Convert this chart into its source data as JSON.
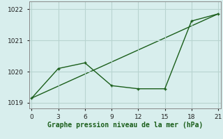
{
  "xlabel": "Graphe pression niveau de la mer (hPa)",
  "bg_color": "#d8eeed",
  "grid_color": "#b8d4d0",
  "line1_x": [
    0,
    3,
    6,
    9,
    12,
    15,
    18,
    21
  ],
  "line1_y": [
    1019.15,
    1020.1,
    1020.28,
    1019.55,
    1019.45,
    1019.45,
    1021.62,
    1021.85
  ],
  "line2_x": [
    0,
    21
  ],
  "line2_y": [
    1019.15,
    1021.85
  ],
  "line_color": "#1a5e1a",
  "xlim": [
    -0.3,
    21.3
  ],
  "ylim": [
    1018.82,
    1022.25
  ],
  "xticks": [
    0,
    3,
    6,
    9,
    12,
    15,
    18,
    21
  ],
  "yticks": [
    1019,
    1020,
    1021,
    1022
  ],
  "marker_size": 3.5,
  "linewidth": 1.0
}
